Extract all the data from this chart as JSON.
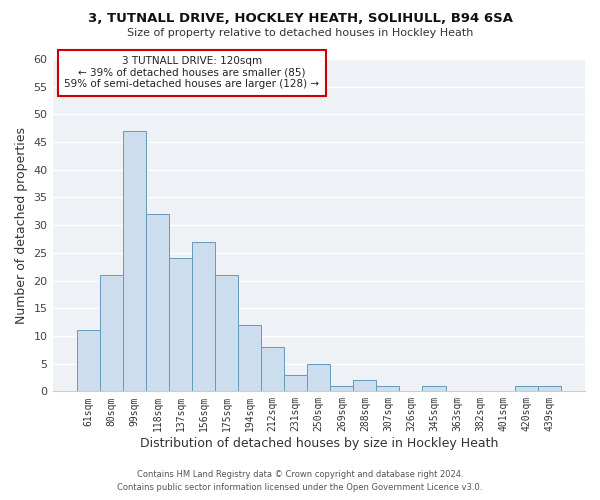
{
  "title": "3, TUTNALL DRIVE, HOCKLEY HEATH, SOLIHULL, B94 6SA",
  "subtitle": "Size of property relative to detached houses in Hockley Heath",
  "xlabel": "Distribution of detached houses by size in Hockley Heath",
  "ylabel": "Number of detached properties",
  "bar_color": "#ccdded",
  "bar_edge_color": "#6699bb",
  "background_color": "#ffffff",
  "plot_bg_color": "#eef2f7",
  "grid_color": "#ffffff",
  "categories": [
    "61sqm",
    "80sqm",
    "99sqm",
    "118sqm",
    "137sqm",
    "156sqm",
    "175sqm",
    "194sqm",
    "212sqm",
    "231sqm",
    "250sqm",
    "269sqm",
    "288sqm",
    "307sqm",
    "326sqm",
    "345sqm",
    "363sqm",
    "382sqm",
    "401sqm",
    "420sqm",
    "439sqm"
  ],
  "values": [
    11,
    21,
    47,
    32,
    24,
    27,
    21,
    12,
    8,
    3,
    5,
    1,
    2,
    1,
    0,
    1,
    0,
    0,
    0,
    1,
    1
  ],
  "ylim": [
    0,
    60
  ],
  "yticks": [
    0,
    5,
    10,
    15,
    20,
    25,
    30,
    35,
    40,
    45,
    50,
    55,
    60
  ],
  "annotation_title": "3 TUTNALL DRIVE: 120sqm",
  "annotation_line1": "← 39% of detached houses are smaller (85)",
  "annotation_line2": "59% of semi-detached houses are larger (128) →",
  "annotation_box_color": "white",
  "annotation_box_edge_color": "#cc0000",
  "footer1": "Contains HM Land Registry data © Crown copyright and database right 2024.",
  "footer2": "Contains public sector information licensed under the Open Government Licence v3.0."
}
